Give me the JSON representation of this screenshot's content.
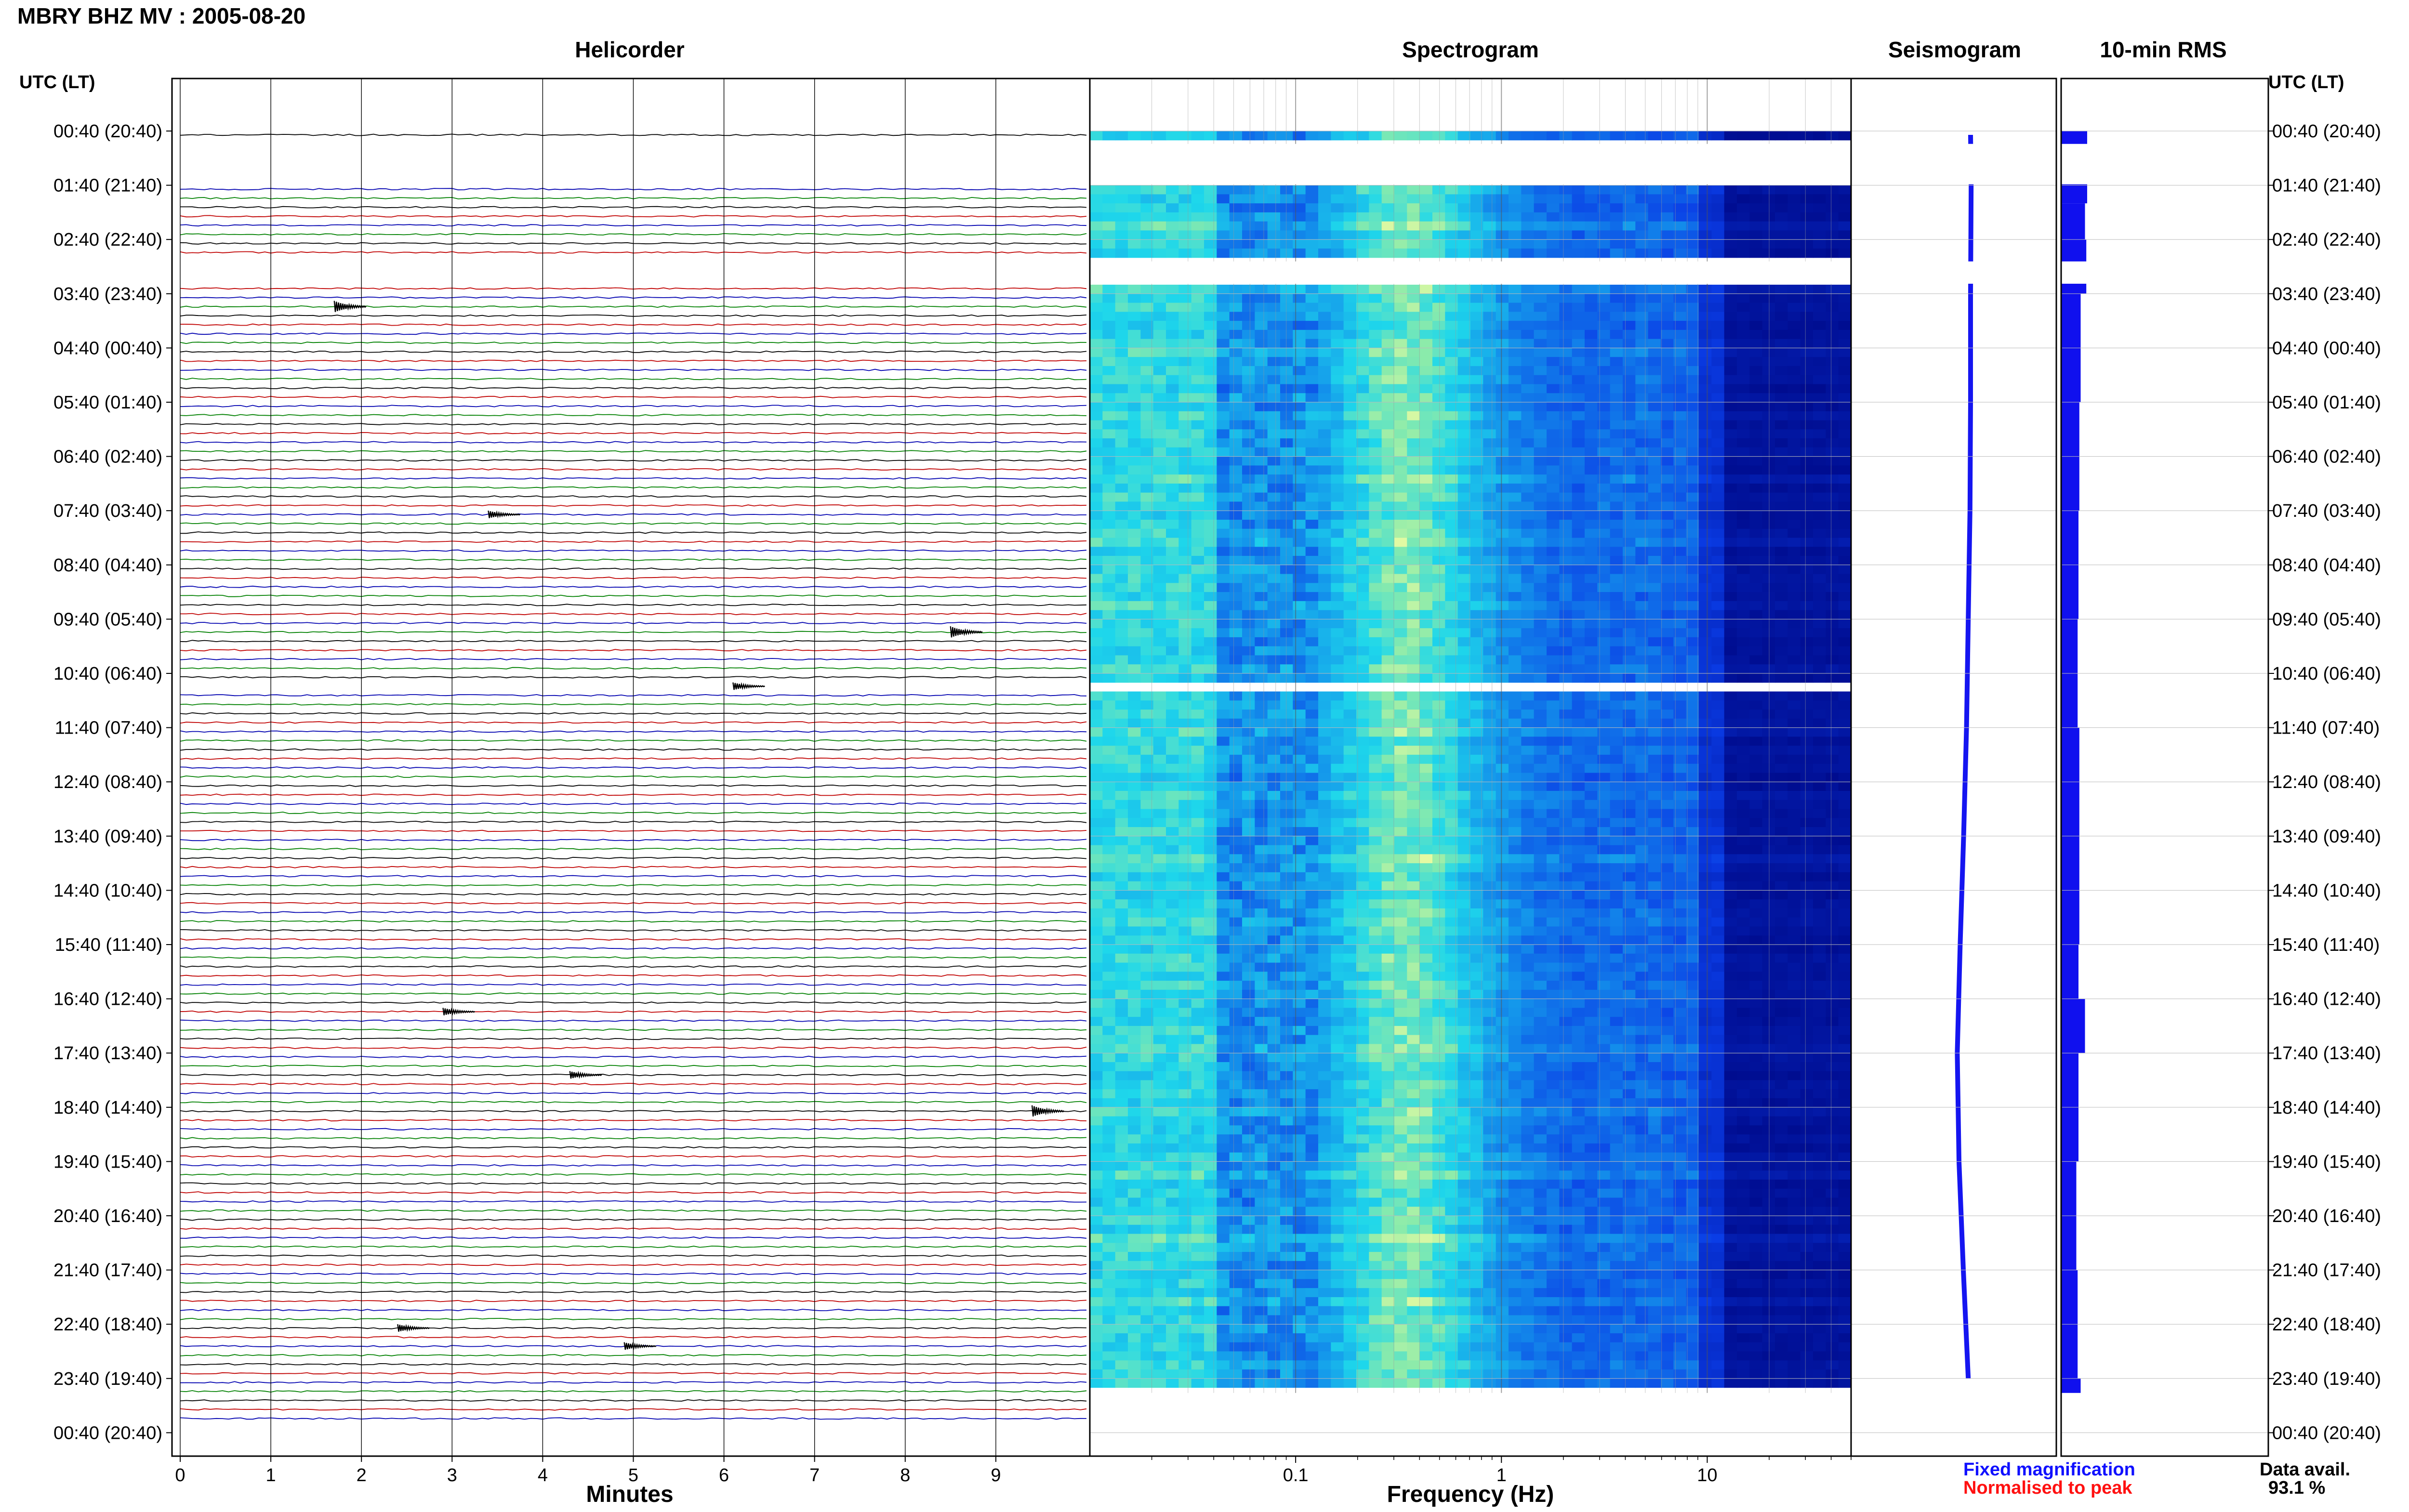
{
  "title": "MBRY BHZ MV : 2005-08-20",
  "panels": {
    "helicorder": "Helicorder",
    "spectrogram": "Spectrogram",
    "seismogram": "Seismogram",
    "rms": "10-min RMS"
  },
  "time_axis_label": "UTC (LT)",
  "legend": {
    "fixed": "Fixed magnification",
    "normalised": "Normalised to peak"
  },
  "data_availability": {
    "label": "Data avail.",
    "value": "93.1 %"
  },
  "colors": {
    "trace_cycle": [
      "#000000",
      "#c00000",
      "#0000b0",
      "#008000"
    ],
    "seismogram": "#1515f0",
    "rms": "#1010ee",
    "spec_low": "#000c8f",
    "spec_high": "#ffffa0"
  },
  "chart_data": [
    {
      "type": "line",
      "panel": "helicorder",
      "title": "Helicorder",
      "xlabel": "Minutes",
      "x_ticks": [
        0,
        1,
        2,
        3,
        4,
        5,
        6,
        7,
        8,
        9
      ],
      "xlim": [
        0,
        10
      ],
      "y_ticks": [
        "00:40 (20:40)",
        "01:40 (21:40)",
        "02:40 (22:40)",
        "03:40 (23:40)",
        "04:40 (00:40)",
        "05:40 (01:40)",
        "06:40 (02:40)",
        "07:40 (03:40)",
        "08:40 (04:40)",
        "09:40 (05:40)",
        "10:40 (06:40)",
        "11:40 (07:40)",
        "12:40 (08:40)",
        "13:40 (09:40)",
        "14:40 (10:40)",
        "15:40 (11:40)",
        "16:40 (12:40)",
        "17:40 (13:40)",
        "18:40 (14:40)",
        "19:40 (15:40)",
        "20:40 (16:40)",
        "21:40 (17:40)",
        "22:40 (18:40)",
        "23:40 (19:40)",
        "00:40 (20:40)"
      ],
      "rows_per_hour": 6,
      "gaps": [
        {
          "start": "00:50",
          "end": "01:40"
        },
        {
          "start": "03:00",
          "end": "03:30"
        },
        {
          "start": "10:50",
          "end": "10:55"
        }
      ],
      "events": [
        {
          "row_time": "03:50",
          "minute": 1.7,
          "amplitude": 3
        },
        {
          "row_time": "07:40",
          "minute": 3.4,
          "amplitude": 2
        },
        {
          "row_time": "09:50",
          "minute": 8.5,
          "amplitude": 3
        },
        {
          "row_time": "10:50",
          "minute": 6.1,
          "amplitude": 2
        },
        {
          "row_time": "16:50",
          "minute": 2.9,
          "amplitude": 2
        },
        {
          "row_time": "18:00",
          "minute": 4.3,
          "amplitude": 2
        },
        {
          "row_time": "18:40",
          "minute": 9.4,
          "amplitude": 3
        },
        {
          "row_time": "22:40",
          "minute": 2.4,
          "amplitude": 2
        },
        {
          "row_time": "23:00",
          "minute": 4.9,
          "amplitude": 2
        }
      ]
    },
    {
      "type": "heatmap",
      "panel": "spectrogram",
      "title": "Spectrogram",
      "xlabel": "Frequency (Hz)",
      "x_scale": "log",
      "xlim": [
        0.01,
        50
      ],
      "x_ticks": [
        0.1,
        1,
        10
      ],
      "x_tick_labels": [
        "0.1",
        "1",
        "10"
      ],
      "peak_band_hz": [
        0.15,
        0.8
      ],
      "high_freq_floor_hz": 12,
      "tremor_band_hz": [
        3,
        6
      ]
    },
    {
      "type": "line",
      "panel": "seismogram",
      "title": "Seismogram",
      "series": [
        {
          "name": "Fixed magnification",
          "times": [
            "00:40",
            "01:40",
            "02:40",
            "03:40",
            "05:40",
            "07:40",
            "09:40",
            "11:40",
            "13:40",
            "15:40",
            "17:40",
            "19:40",
            "21:40",
            "23:40"
          ],
          "values": [
            0.3,
            0.32,
            0.31,
            0.3,
            0.3,
            0.28,
            0.22,
            0.16,
            0.06,
            -0.06,
            -0.16,
            -0.1,
            0.05,
            0.22
          ]
        }
      ]
    },
    {
      "type": "bar",
      "panel": "rms",
      "title": "10-min RMS",
      "series": [
        {
          "name": "RMS",
          "times": [
            "00:40",
            "01:40",
            "02:00",
            "02:40",
            "03:40",
            "05:40",
            "07:40",
            "09:40",
            "11:40",
            "13:40",
            "15:40",
            "16:40",
            "17:40",
            "19:40",
            "21:40",
            "23:40"
          ],
          "values": [
            0.6,
            0.6,
            0.55,
            0.58,
            0.45,
            0.42,
            0.4,
            0.38,
            0.42,
            0.42,
            0.4,
            0.55,
            0.4,
            0.35,
            0.38,
            0.45
          ]
        }
      ]
    }
  ]
}
